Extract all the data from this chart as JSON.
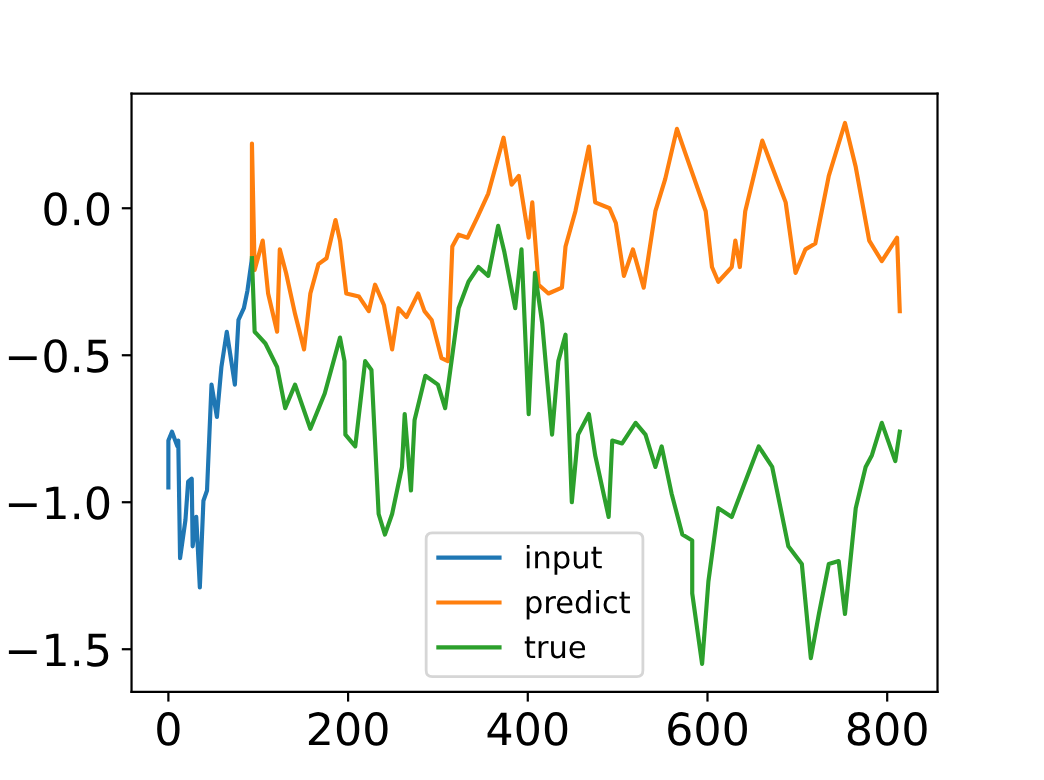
{
  "chart_data": {
    "type": "line",
    "xlim": [
      -41,
      856
    ],
    "ylim": [
      -1.645,
      0.39
    ],
    "xticks": [
      0,
      200,
      400,
      600,
      800
    ],
    "yticks": [
      {
        "value": -1.5,
        "label": "−1.5"
      },
      {
        "value": -1.0,
        "label": "−1.0"
      },
      {
        "value": -0.5,
        "label": "−0.5"
      },
      {
        "value": 0.0,
        "label": "0.0"
      }
    ],
    "grid": false,
    "legend": "bottom",
    "line_style": "solid",
    "marker": "none",
    "series": [
      {
        "name": "input",
        "color": "#1f77b4",
        "x": [
          0,
          0,
          4,
          10,
          11,
          13,
          19,
          22,
          26,
          27,
          31,
          35,
          39,
          43,
          48,
          54,
          59,
          65,
          68,
          74,
          78,
          84,
          88,
          93
        ],
        "values": [
          -0.95,
          -0.79,
          -0.76,
          -0.81,
          -0.79,
          -1.19,
          -1.06,
          -0.93,
          -0.92,
          -1.15,
          -1.05,
          -1.29,
          -0.995,
          -0.96,
          -0.6,
          -0.71,
          -0.54,
          -0.42,
          -0.48,
          -0.6,
          -0.38,
          -0.34,
          -0.28,
          -0.17
        ]
      },
      {
        "name": "predict",
        "color": "#ff7f0e",
        "x": [
          93,
          93,
          96,
          105,
          111,
          121,
          124,
          131,
          141,
          151,
          158,
          167,
          176,
          186,
          191,
          198,
          212,
          223,
          230,
          240,
          249,
          256,
          265,
          278,
          285,
          293,
          304,
          311,
          316,
          323,
          333,
          344,
          356,
          373,
          382,
          390,
          401,
          405,
          412,
          423,
          438,
          442,
          453,
          468,
          475,
          491,
          498,
          507,
          517,
          529,
          542,
          553,
          566,
          575,
          598,
          605,
          612,
          627,
          631,
          636,
          642,
          661,
          672,
          687,
          698,
          709,
          720,
          735,
          753,
          765,
          780,
          794,
          811,
          814
        ],
        "values": [
          -0.17,
          0.22,
          -0.21,
          -0.11,
          -0.29,
          -0.42,
          -0.14,
          -0.22,
          -0.36,
          -0.48,
          -0.29,
          -0.19,
          -0.17,
          -0.04,
          -0.11,
          -0.29,
          -0.3,
          -0.35,
          -0.26,
          -0.33,
          -0.48,
          -0.34,
          -0.37,
          -0.29,
          -0.35,
          -0.38,
          -0.51,
          -0.52,
          -0.13,
          -0.09,
          -0.1,
          -0.03,
          0.05,
          0.24,
          0.08,
          0.11,
          -0.1,
          0.02,
          -0.26,
          -0.29,
          -0.27,
          -0.13,
          -0.01,
          0.21,
          0.02,
          0.0,
          -0.05,
          -0.23,
          -0.14,
          -0.27,
          -0.01,
          0.1,
          0.27,
          0.19,
          -0.01,
          -0.2,
          -0.25,
          -0.2,
          -0.11,
          -0.2,
          -0.01,
          0.23,
          0.14,
          0.02,
          -0.22,
          -0.14,
          -0.12,
          0.11,
          0.29,
          0.14,
          -0.11,
          -0.18,
          -0.1,
          -0.35
        ]
      },
      {
        "name": "true",
        "color": "#2ca02c",
        "x": [
          93,
          96,
          108,
          121,
          130,
          141,
          158,
          174,
          191,
          196,
          197,
          208,
          219,
          226,
          234,
          241,
          249,
          260,
          263,
          270,
          274,
          286,
          300,
          308,
          316,
          323,
          334,
          345,
          356,
          367,
          374,
          386,
          393,
          401,
          408,
          416,
          427,
          434,
          442,
          449,
          456,
          468,
          475,
          490,
          494,
          505,
          520,
          531,
          542,
          549,
          560,
          572,
          583,
          583,
          594,
          601,
          612,
          627,
          657,
          672,
          690,
          705,
          715,
          724,
          735,
          746,
          753,
          765,
          776,
          783,
          794,
          809,
          814
        ],
        "values": [
          -0.17,
          -0.42,
          -0.46,
          -0.54,
          -0.68,
          -0.6,
          -0.75,
          -0.63,
          -0.44,
          -0.52,
          -0.77,
          -0.81,
          -0.52,
          -0.55,
          -1.04,
          -1.11,
          -1.04,
          -0.88,
          -0.7,
          -0.96,
          -0.72,
          -0.57,
          -0.6,
          -0.68,
          -0.5,
          -0.34,
          -0.25,
          -0.2,
          -0.23,
          -0.06,
          -0.15,
          -0.34,
          -0.14,
          -0.7,
          -0.22,
          -0.39,
          -0.77,
          -0.52,
          -0.43,
          -1.0,
          -0.77,
          -0.7,
          -0.84,
          -1.05,
          -0.79,
          -0.8,
          -0.73,
          -0.77,
          -0.88,
          -0.81,
          -0.97,
          -1.11,
          -1.13,
          -1.31,
          -1.55,
          -1.27,
          -1.02,
          -1.05,
          -0.81,
          -0.88,
          -1.15,
          -1.21,
          -1.53,
          -1.38,
          -1.21,
          -1.2,
          -1.38,
          -1.02,
          -0.88,
          -0.84,
          -0.73,
          -0.86,
          -0.76
        ]
      }
    ]
  }
}
